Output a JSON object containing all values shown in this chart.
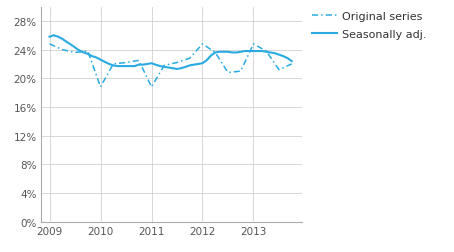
{
  "ylim": [
    0.0,
    0.3
  ],
  "yticks": [
    0.0,
    0.04,
    0.08,
    0.12,
    0.16,
    0.2,
    0.24,
    0.28
  ],
  "ytick_labels": [
    "0%",
    "4%",
    "8%",
    "12%",
    "16%",
    "20%",
    "24%",
    "28%"
  ],
  "xticks": [
    2009,
    2010,
    2011,
    2012,
    2013
  ],
  "xlim": [
    2008.83,
    2013.95
  ],
  "legend_labels": [
    "Original series",
    "Seasonally adj."
  ],
  "original_x": [
    2009.0,
    2009.25,
    2009.5,
    2009.75,
    2010.0,
    2010.25,
    2010.5,
    2010.75,
    2011.0,
    2011.25,
    2011.5,
    2011.75,
    2012.0,
    2012.25,
    2012.5,
    2012.75,
    2013.0,
    2013.25,
    2013.5,
    2013.75
  ],
  "original_y": [
    0.248,
    0.24,
    0.236,
    0.238,
    0.188,
    0.22,
    0.222,
    0.225,
    0.188,
    0.218,
    0.222,
    0.228,
    0.248,
    0.236,
    0.208,
    0.21,
    0.248,
    0.238,
    0.212,
    0.22
  ],
  "seasonal_x": [
    2009.0,
    2009.08,
    2009.17,
    2009.25,
    2009.33,
    2009.42,
    2009.5,
    2009.58,
    2009.67,
    2009.75,
    2009.83,
    2009.92,
    2010.0,
    2010.08,
    2010.17,
    2010.25,
    2010.33,
    2010.42,
    2010.5,
    2010.58,
    2010.67,
    2010.75,
    2010.83,
    2010.92,
    2011.0,
    2011.08,
    2011.17,
    2011.25,
    2011.33,
    2011.42,
    2011.5,
    2011.58,
    2011.67,
    2011.75,
    2011.83,
    2011.92,
    2012.0,
    2012.08,
    2012.17,
    2012.25,
    2012.33,
    2012.42,
    2012.5,
    2012.58,
    2012.67,
    2012.75,
    2012.83,
    2012.92,
    2013.0,
    2013.08,
    2013.17,
    2013.25,
    2013.33,
    2013.42,
    2013.5,
    2013.58,
    2013.67,
    2013.75
  ],
  "seasonal_y": [
    0.258,
    0.26,
    0.258,
    0.255,
    0.251,
    0.247,
    0.243,
    0.239,
    0.236,
    0.234,
    0.231,
    0.229,
    0.226,
    0.223,
    0.22,
    0.218,
    0.217,
    0.217,
    0.217,
    0.217,
    0.217,
    0.219,
    0.219,
    0.22,
    0.221,
    0.219,
    0.217,
    0.216,
    0.215,
    0.214,
    0.213,
    0.214,
    0.216,
    0.218,
    0.219,
    0.22,
    0.221,
    0.225,
    0.232,
    0.236,
    0.237,
    0.237,
    0.237,
    0.236,
    0.236,
    0.237,
    0.238,
    0.238,
    0.238,
    0.238,
    0.238,
    0.237,
    0.236,
    0.235,
    0.233,
    0.231,
    0.228,
    0.224
  ],
  "bg_color": "#ffffff",
  "grid_color": "#c8c8c8",
  "line_color": "#29abe2",
  "tick_color": "#555555",
  "tick_fontsize": 7.5,
  "legend_fontsize": 8.0
}
